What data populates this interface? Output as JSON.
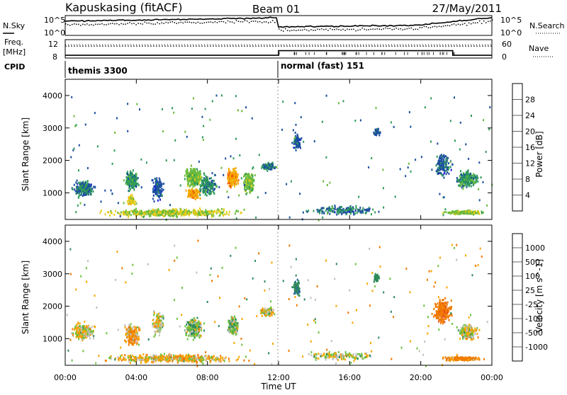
{
  "header": {
    "station": "Kapuskasing (fitACF)",
    "beam": "Beam 01",
    "date": "27/May/2011"
  },
  "left_labels": {
    "nsky": "N.Sky",
    "freq_line1": "Freq.",
    "freq_line2": "[MHz]",
    "cpid": "CPID"
  },
  "right_labels": {
    "nsearch": "N.Search",
    "nave": "Nave"
  },
  "noise_panel": {
    "left_ticks": [
      "10^5",
      "10^0"
    ],
    "right_ticks": [
      "10^5",
      "10^0"
    ]
  },
  "freq_panel": {
    "left_ticks": [
      "12",
      "8"
    ],
    "right_ticks": [
      "60",
      "0"
    ],
    "freq_mhz_first": 10.6,
    "freq_mhz_second": 10.9,
    "nave_steps": [
      {
        "t0": 0,
        "t1": 12,
        "nave": 9
      },
      {
        "t0": 12,
        "t1": 21.8,
        "nave": 24
      },
      {
        "t0": 21.8,
        "t1": 24,
        "nave": 9
      }
    ]
  },
  "cpid_segments": [
    {
      "label": "themis 3300",
      "t0": 0,
      "t1": 12
    },
    {
      "label": "normal (fast) 151",
      "t0": 12,
      "t1": 24
    }
  ],
  "power_colorbar": {
    "label": "Power [dB]",
    "ticks": [
      "28",
      "24",
      "20",
      "16",
      "12",
      "8",
      "4"
    ],
    "colors": [
      "#e8000b",
      "#f05a00",
      "#f7a600",
      "#e6cc1a",
      "#6cbb3c",
      "#2e9a5a",
      "#1d4fa0",
      "#1018e0"
    ]
  },
  "velocity_colorbar": {
    "label": "Velocity [m s^-1]",
    "ticks": [
      "1000",
      "500",
      "100",
      "25",
      "-25",
      "-100",
      "-500",
      "-1000"
    ],
    "colors": [
      "#1d3ea8",
      "#2a6aa6",
      "#2e8a5a",
      "#6cc33c",
      "#c0c0c0",
      "#f7a600",
      "#f07a00",
      "#e84a1a",
      "#e8000b"
    ]
  },
  "chart_data": {
    "type": "heatmap",
    "xlabel": "Time UT",
    "ylabel": "Slant Range [km]",
    "x_ticks": [
      "00:00",
      "04:00",
      "08:00",
      "12:00",
      "16:00",
      "20:00",
      "00:00"
    ],
    "y_ticks": [
      "1000",
      "2000",
      "3000",
      "4000"
    ],
    "xlim": [
      0,
      24
    ],
    "ylim": [
      180,
      4500
    ],
    "panels": [
      {
        "name": "power",
        "regions": [
          {
            "t": 1.0,
            "r": 1150,
            "dt": 0.9,
            "dr": 350,
            "v": 8,
            "n": 220
          },
          {
            "t": 3.7,
            "r": 1400,
            "dt": 0.6,
            "dr": 450,
            "v": 10,
            "n": 200
          },
          {
            "t": 3.7,
            "r": 800,
            "dt": 0.4,
            "dr": 200,
            "v": 18,
            "n": 90
          },
          {
            "t": 5.2,
            "r": 1150,
            "dt": 0.5,
            "dr": 550,
            "v": 6,
            "n": 120
          },
          {
            "t": 7.2,
            "r": 1500,
            "dt": 0.7,
            "dr": 450,
            "v": 14,
            "n": 320
          },
          {
            "t": 7.2,
            "r": 1000,
            "dt": 0.5,
            "dr": 250,
            "v": 22,
            "n": 120
          },
          {
            "t": 8.0,
            "r": 1250,
            "dt": 0.8,
            "dr": 450,
            "v": 9,
            "n": 180
          },
          {
            "t": 9.4,
            "r": 1500,
            "dt": 0.45,
            "dr": 400,
            "v": 22,
            "n": 300
          },
          {
            "t": 10.3,
            "r": 1350,
            "dt": 0.5,
            "dr": 500,
            "v": 14,
            "n": 160
          },
          {
            "t": 11.4,
            "r": 1850,
            "dt": 0.5,
            "dr": 180,
            "v": 8,
            "n": 150
          },
          {
            "t": 6.0,
            "r": 420,
            "dt": 5.5,
            "dr": 180,
            "v": 16,
            "n": 500
          },
          {
            "t": 13.0,
            "r": 2600,
            "dt": 0.35,
            "dr": 350,
            "v": 6,
            "n": 90
          },
          {
            "t": 17.5,
            "r": 2900,
            "dt": 0.3,
            "dr": 200,
            "v": 6,
            "n": 40
          },
          {
            "t": 21.2,
            "r": 1900,
            "dt": 0.7,
            "dr": 550,
            "v": 7,
            "n": 160
          },
          {
            "t": 22.6,
            "r": 1450,
            "dt": 0.9,
            "dr": 350,
            "v": 10,
            "n": 260
          },
          {
            "t": 22.4,
            "r": 430,
            "dt": 1.5,
            "dr": 90,
            "v": 15,
            "n": 220
          },
          {
            "t": 15.5,
            "r": 500,
            "dt": 3.0,
            "dr": 200,
            "v": 8,
            "n": 180
          }
        ]
      },
      {
        "name": "velocity",
        "regions": [
          {
            "t": 1.0,
            "r": 1250,
            "dt": 0.9,
            "dr": 350,
            "v": 0,
            "n": 220
          },
          {
            "t": 3.7,
            "r": 1150,
            "dt": 0.6,
            "dr": 450,
            "v": -80,
            "n": 220
          },
          {
            "t": 5.2,
            "r": 1500,
            "dt": 0.5,
            "dr": 550,
            "v": 0,
            "n": 110
          },
          {
            "t": 7.2,
            "r": 1350,
            "dt": 0.7,
            "dr": 450,
            "v": 80,
            "n": 320
          },
          {
            "t": 9.4,
            "r": 1400,
            "dt": 0.45,
            "dr": 400,
            "v": 80,
            "n": 300
          },
          {
            "t": 11.3,
            "r": 1850,
            "dt": 0.5,
            "dr": 180,
            "v": 0,
            "n": 150
          },
          {
            "t": 6.0,
            "r": 420,
            "dt": 5.5,
            "dr": 180,
            "v": -40,
            "n": 500
          },
          {
            "t": 13.0,
            "r": 2600,
            "dt": 0.35,
            "dr": 350,
            "v": 400,
            "n": 90
          },
          {
            "t": 17.5,
            "r": 2900,
            "dt": 0.3,
            "dr": 200,
            "v": 400,
            "n": 40
          },
          {
            "t": 21.2,
            "r": 1850,
            "dt": 0.8,
            "dr": 550,
            "v": -400,
            "n": 220
          },
          {
            "t": 22.6,
            "r": 1250,
            "dt": 0.9,
            "dr": 350,
            "v": 0,
            "n": 240
          },
          {
            "t": 22.3,
            "r": 410,
            "dt": 1.5,
            "dr": 90,
            "v": -150,
            "n": 220
          },
          {
            "t": 15.5,
            "r": 500,
            "dt": 3.0,
            "dr": 200,
            "v": 10,
            "n": 160
          }
        ]
      }
    ]
  }
}
